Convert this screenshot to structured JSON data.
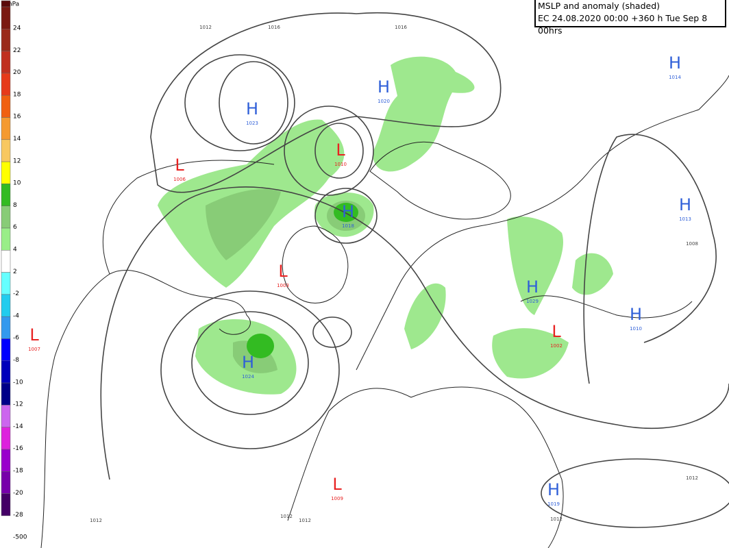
{
  "header": {
    "title": "MSLP and anomaly (shaded)",
    "subtitle": "EC 24.08.2020 00:00 +360 h Tue Sep 8 00hrs"
  },
  "legend": {
    "unit": "hPa",
    "labels": [
      "24",
      "22",
      "20",
      "18",
      "16",
      "14",
      "12",
      "10",
      "8",
      "6",
      "4",
      "2",
      "-2",
      "-4",
      "-6",
      "-8",
      "-10",
      "-12",
      "-14",
      "-16",
      "-18",
      "-20",
      "-28",
      "-500"
    ],
    "colors": [
      "#5a0a0a",
      "#7a1a12",
      "#9a2a1a",
      "#c03020",
      "#e63a1a",
      "#f06010",
      "#f59a30",
      "#f8c860",
      "#ffff00",
      "#33bb22",
      "#88cc77",
      "#99ee88",
      "#ffffff",
      "#66ffff",
      "#22ccee",
      "#3399ee",
      "#0000ff",
      "#0000bb",
      "#000088",
      "#cc66ee",
      "#dd22dd",
      "#9900cc",
      "#7700aa",
      "#440066"
    ]
  },
  "symbol_colors": {
    "H": "#2f5fd8",
    "L": "#e82222"
  },
  "centers": [
    {
      "symbol": "H",
      "value": "1023"
    },
    {
      "symbol": "H",
      "value": "1020"
    },
    {
      "symbol": "L",
      "value": "1006"
    },
    {
      "symbol": "L",
      "value": "1010"
    },
    {
      "symbol": "H",
      "value": "1018"
    },
    {
      "symbol": "L",
      "value": "1003"
    },
    {
      "symbol": "H",
      "value": "1024"
    },
    {
      "symbol": "L",
      "value": "1007"
    },
    {
      "symbol": "H",
      "value": "1014"
    },
    {
      "symbol": "H",
      "value": "1013"
    },
    {
      "symbol": "H",
      "value": "1029"
    },
    {
      "symbol": "L",
      "value": "1002"
    },
    {
      "symbol": "H",
      "value": "1010"
    },
    {
      "symbol": "L",
      "value": "1009"
    },
    {
      "symbol": "H",
      "value": "1019"
    }
  ],
  "isobar_labels": [
    "1012",
    "1016",
    "1016",
    "1008",
    "1012",
    "1012",
    "1012",
    "1012",
    "1012"
  ]
}
